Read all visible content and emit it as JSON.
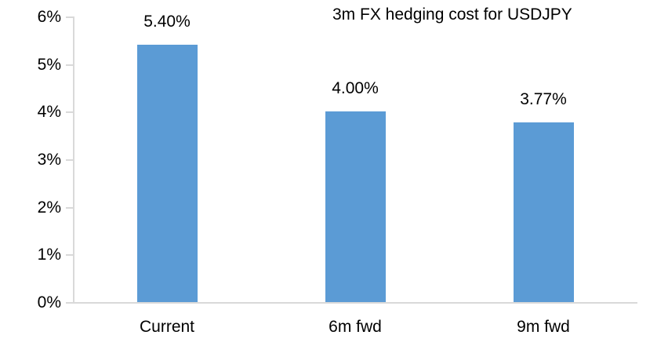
{
  "colors": {
    "bar_fill": "#5B9BD5",
    "axis_line": "#D9D9D9",
    "text": "#000000",
    "background": "#FFFFFF"
  },
  "chart_data": {
    "type": "bar",
    "title": "3m FX hedging cost for USDJPY",
    "categories": [
      "Current",
      "6m fwd",
      "9m fwd"
    ],
    "values": [
      5.4,
      4.0,
      3.77
    ],
    "value_labels": [
      "5.40%",
      "4.00%",
      "3.77%"
    ],
    "xlabel": "",
    "ylabel": "",
    "ylim": [
      0,
      6
    ],
    "ytick_step": 1,
    "ytick_labels": [
      "0%",
      "1%",
      "2%",
      "3%",
      "4%",
      "5%",
      "6%"
    ],
    "grid": false,
    "legend": false,
    "bar_color": "#5B9BD5"
  }
}
